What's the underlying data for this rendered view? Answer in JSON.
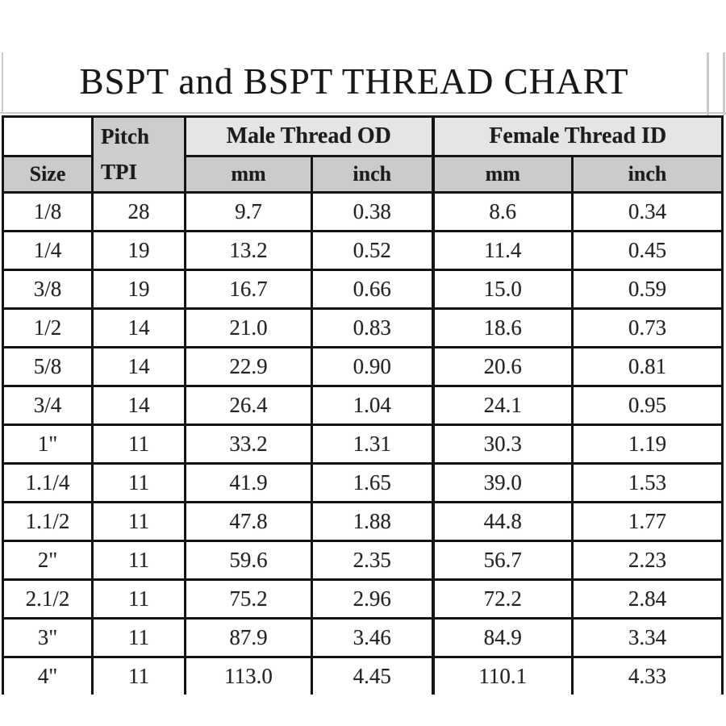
{
  "title": "BSPT and BSPT THREAD CHART",
  "colors": {
    "header_gray": "#cdcdcd",
    "group_header_gray": "#e5e5e5",
    "grid_border": "#141414",
    "scan_line_gray": "#cbcbcb",
    "text": "#1c1c1c",
    "background": "#ffffff"
  },
  "table": {
    "pitch_line1": "Pitch",
    "pitch_line2": "TPI",
    "size_header": "Size",
    "group_male": "Male Thread OD",
    "group_female": "Female Thread ID",
    "sub_headers": [
      "mm",
      "inch",
      "mm",
      "inch"
    ],
    "rows": [
      [
        "1/8",
        "28",
        "9.7",
        "0.38",
        "8.6",
        "0.34"
      ],
      [
        "1/4",
        "19",
        "13.2",
        "0.52",
        "11.4",
        "0.45"
      ],
      [
        "3/8",
        "19",
        "16.7",
        "0.66",
        "15.0",
        "0.59"
      ],
      [
        "1/2",
        "14",
        "21.0",
        "0.83",
        "18.6",
        "0.73"
      ],
      [
        "5/8",
        "14",
        "22.9",
        "0.90",
        "20.6",
        "0.81"
      ],
      [
        "3/4",
        "14",
        "26.4",
        "1.04",
        "24.1",
        "0.95"
      ],
      [
        "1\"",
        "11",
        "33.2",
        "1.31",
        "30.3",
        "1.19"
      ],
      [
        "1.1/4",
        "11",
        "41.9",
        "1.65",
        "39.0",
        "1.53"
      ],
      [
        "1.1/2",
        "11",
        "47.8",
        "1.88",
        "44.8",
        "1.77"
      ],
      [
        "2\"",
        "11",
        "59.6",
        "2.35",
        "56.7",
        "2.23"
      ],
      [
        "2.1/2",
        "11",
        "75.2",
        "2.96",
        "72.2",
        "2.84"
      ],
      [
        "3\"",
        "11",
        "87.9",
        "3.46",
        "84.9",
        "3.34"
      ],
      [
        "4\"",
        "11",
        "113.0",
        "4.45",
        "110.1",
        "4.33"
      ]
    ]
  },
  "chart_data": {
    "type": "table",
    "title": "BSPT and BSPT THREAD CHART",
    "columns": [
      "Size",
      "Pitch TPI",
      "Male Thread OD mm",
      "Male Thread OD inch",
      "Female Thread ID mm",
      "Female Thread ID inch"
    ],
    "rows": [
      [
        "1/8",
        28,
        9.7,
        0.38,
        8.6,
        0.34
      ],
      [
        "1/4",
        19,
        13.2,
        0.52,
        11.4,
        0.45
      ],
      [
        "3/8",
        19,
        16.7,
        0.66,
        15.0,
        0.59
      ],
      [
        "1/2",
        14,
        21.0,
        0.83,
        18.6,
        0.73
      ],
      [
        "5/8",
        14,
        22.9,
        0.9,
        20.6,
        0.81
      ],
      [
        "3/4",
        14,
        26.4,
        1.04,
        24.1,
        0.95
      ],
      [
        "1\"",
        11,
        33.2,
        1.31,
        30.3,
        1.19
      ],
      [
        "1.1/4",
        11,
        41.9,
        1.65,
        39.0,
        1.53
      ],
      [
        "1.1/2",
        11,
        47.8,
        1.88,
        44.8,
        1.77
      ],
      [
        "2\"",
        11,
        59.6,
        2.35,
        56.7,
        2.23
      ],
      [
        "2.1/2",
        11,
        75.2,
        2.96,
        72.2,
        2.84
      ],
      [
        "3\"",
        11,
        87.9,
        3.46,
        84.9,
        3.34
      ],
      [
        "4\"",
        11,
        113.0,
        4.45,
        110.1,
        4.33
      ]
    ],
    "layout_hints": {
      "grid": true,
      "header_levels": 2,
      "last_row_clipped": true
    }
  }
}
